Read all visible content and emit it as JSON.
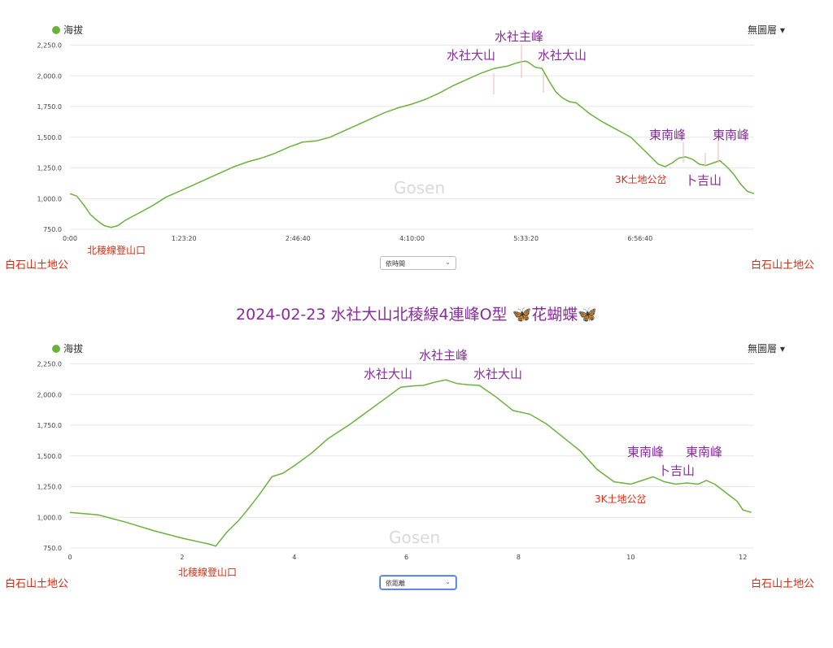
{
  "title": {
    "text": "2024-02-23  水社大山北稜線4連峰O型 ",
    "butterfly": "🦋",
    "tail": "花蝴蝶",
    "butterfly2": "🦋"
  },
  "colors": {
    "line": "#6ab23c",
    "purple": "#8a2aa0",
    "red": "#e02a10"
  },
  "chart1": {
    "legend": "海拔",
    "layer_menu": "無圖層 ▾",
    "watermark": "Gosen",
    "select_label": "依時間",
    "start_label": "白石山土地公",
    "end_label": "白石山土地公",
    "annotations": [
      {
        "text": "水社主峰",
        "style": "purple"
      },
      {
        "text": "水社大山",
        "style": "purple"
      },
      {
        "text": "水社大山",
        "style": "purple"
      },
      {
        "text": "東南峰",
        "style": "purple"
      },
      {
        "text": "東南峰",
        "style": "purple"
      },
      {
        "text": "卜吉山",
        "style": "purple"
      },
      {
        "text": "3K土地公岔",
        "style": "red"
      },
      {
        "text": "北稜線登山口",
        "style": "red"
      }
    ]
  },
  "chart2": {
    "legend": "海拔",
    "layer_menu": "無圖層 ▾",
    "watermark": "Gosen",
    "select_label": "依距離",
    "start_label": "白石山土地公",
    "end_label": "白石山土地公",
    "annotations": [
      {
        "text": "水社主峰",
        "style": "purple"
      },
      {
        "text": "水社大山",
        "style": "purple"
      },
      {
        "text": "水社大山",
        "style": "purple"
      },
      {
        "text": "東南峰",
        "style": "purple"
      },
      {
        "text": "東南峰",
        "style": "purple"
      },
      {
        "text": "卜吉山",
        "style": "purple"
      },
      {
        "text": "3K土地公岔",
        "style": "red"
      },
      {
        "text": "北稜線登山口",
        "style": "red"
      }
    ]
  },
  "chart_data": [
    {
      "type": "line",
      "xlabel": "",
      "ylabel": "",
      "x_type": "time_minutes",
      "x_ticks": [
        0,
        83.33,
        166.67,
        250,
        333.33,
        416.67
      ],
      "x_tick_labels": [
        "0:00",
        "1:23:20",
        "2:46:40",
        "4:10:00",
        "5:33:20",
        "6:56:40"
      ],
      "xlim": [
        0,
        500
      ],
      "y_ticks": [
        750,
        1000,
        1250,
        1500,
        1750,
        2000,
        2250
      ],
      "y_tick_labels": [
        "750.0",
        "1,000.0",
        "1,250.0",
        "1,500.0",
        "1,750.0",
        "2,000.0",
        "2,250.0"
      ],
      "ylim": [
        750,
        2300
      ],
      "grid": true,
      "legend": "top-left",
      "series": [
        {
          "name": "海拔",
          "x": [
            0,
            5,
            10,
            15,
            20,
            25,
            30,
            35,
            40,
            50,
            60,
            70,
            80,
            90,
            100,
            110,
            120,
            130,
            140,
            150,
            160,
            170,
            180,
            190,
            200,
            210,
            220,
            230,
            240,
            250,
            260,
            270,
            280,
            290,
            300,
            310,
            315,
            320,
            325,
            330,
            333,
            335,
            340,
            345,
            350,
            355,
            360,
            365,
            370,
            380,
            390,
            400,
            410,
            420,
            430,
            435,
            440,
            445,
            450,
            455,
            460,
            465,
            470,
            475,
            480,
            485,
            490,
            495,
            500
          ],
          "y": [
            1040,
            1020,
            950,
            870,
            820,
            780,
            765,
            780,
            820,
            880,
            940,
            1010,
            1060,
            1110,
            1160,
            1210,
            1260,
            1300,
            1330,
            1370,
            1420,
            1460,
            1470,
            1500,
            1550,
            1600,
            1650,
            1700,
            1740,
            1770,
            1810,
            1860,
            1920,
            1970,
            2020,
            2060,
            2070,
            2080,
            2100,
            2115,
            2120,
            2110,
            2070,
            2060,
            1960,
            1870,
            1820,
            1790,
            1780,
            1690,
            1620,
            1560,
            1500,
            1390,
            1280,
            1260,
            1290,
            1330,
            1340,
            1320,
            1280,
            1270,
            1290,
            1310,
            1260,
            1200,
            1120,
            1060,
            1040
          ]
        }
      ]
    },
    {
      "type": "line",
      "xlabel": "",
      "ylabel": "",
      "x_type": "distance",
      "x_ticks": [
        0,
        2,
        4,
        6,
        8,
        10,
        12
      ],
      "x_tick_labels": [
        "0",
        "2",
        "4",
        "6",
        "8",
        "10",
        "12"
      ],
      "xlim": [
        0,
        12.2
      ],
      "y_ticks": [
        750,
        1000,
        1250,
        1500,
        1750,
        2000,
        2250
      ],
      "y_tick_labels": [
        "750.0",
        "1,000.0",
        "1,250.0",
        "1,500.0",
        "1,750.0",
        "2,000.0",
        "2,250.0"
      ],
      "ylim": [
        750,
        2300
      ],
      "grid": true,
      "legend": "top-left",
      "series": [
        {
          "name": "海拔",
          "x": [
            0,
            0.5,
            1.0,
            1.5,
            2.0,
            2.5,
            2.6,
            2.8,
            3.0,
            3.2,
            3.4,
            3.6,
            3.8,
            4.0,
            4.3,
            4.6,
            5.0,
            5.3,
            5.6,
            5.9,
            6.1,
            6.3,
            6.5,
            6.7,
            6.9,
            7.1,
            7.3,
            7.6,
            7.9,
            8.2,
            8.5,
            8.8,
            9.1,
            9.4,
            9.7,
            10.0,
            10.2,
            10.4,
            10.6,
            10.8,
            11.0,
            11.2,
            11.35,
            11.5,
            11.7,
            11.9,
            12.0,
            12.15
          ],
          "y": [
            1040,
            1020,
            960,
            890,
            830,
            780,
            765,
            880,
            970,
            1080,
            1200,
            1330,
            1360,
            1420,
            1520,
            1640,
            1760,
            1860,
            1960,
            2060,
            2070,
            2075,
            2100,
            2120,
            2090,
            2080,
            2075,
            1980,
            1870,
            1840,
            1760,
            1650,
            1540,
            1390,
            1290,
            1270,
            1300,
            1330,
            1290,
            1270,
            1280,
            1270,
            1300,
            1270,
            1200,
            1130,
            1060,
            1040
          ]
        }
      ]
    }
  ]
}
